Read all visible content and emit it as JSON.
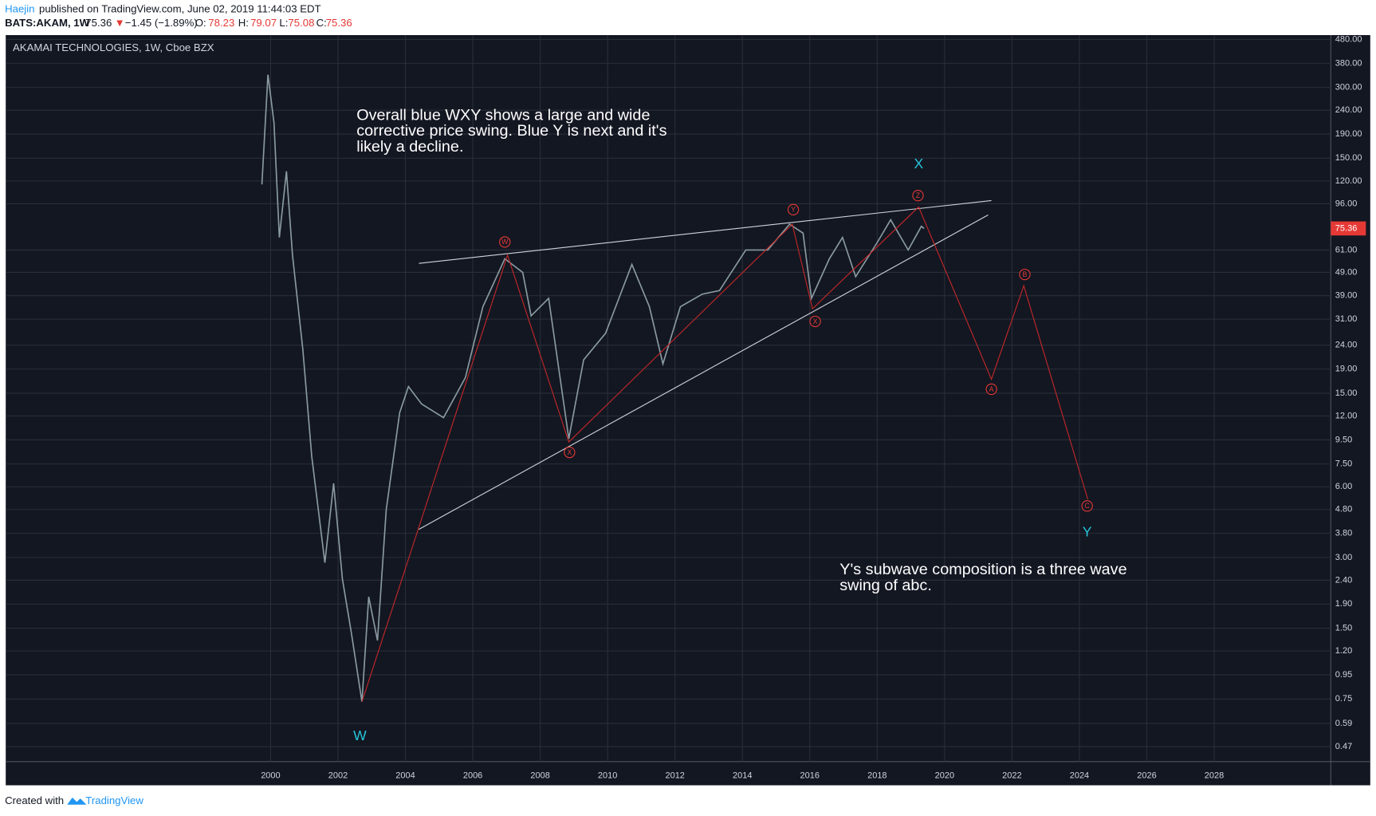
{
  "header": {
    "author": "Haejin",
    "published": "published on TradingView.com, June 02, 2019 11:44:03 EDT",
    "symbol": "BATS:AKAM, 1W",
    "price": "75.36",
    "arrow": "▼",
    "change": "−1.45 (−1.89%)",
    "o_label": "O:",
    "o": "78.23",
    "h_label": "H:",
    "h": "79.07",
    "l_label": "L:",
    "l": "75.08",
    "c_label": "C:",
    "c": "75.36"
  },
  "footer": {
    "created": "Created with",
    "brand": "TradingView"
  },
  "chart_data": {
    "type": "line",
    "title": "AKAMAI TECHNOLOGIES, 1W, Cboe BZX",
    "log_scale": true,
    "grid": true,
    "color": "#8a9ba0",
    "x": [
      1999.74,
      1999.92,
      2000.1,
      2000.26,
      2000.47,
      2000.65,
      2000.96,
      2001.22,
      2001.61,
      2001.87,
      2002.13,
      2002.39,
      2002.71,
      2002.91,
      2003.17,
      2003.43,
      2003.83,
      2004.09,
      2004.48,
      2005.13,
      2005.78,
      2006.3,
      2006.95,
      2007.48,
      2007.73,
      2008.25,
      2008.85,
      2009.29,
      2009.94,
      2010.72,
      2011.24,
      2011.64,
      2012.16,
      2012.81,
      2013.32,
      2014.1,
      2014.75,
      2015.4,
      2015.8,
      2016.05,
      2016.58,
      2016.97,
      2017.36,
      2018.01,
      2018.4,
      2018.92,
      2019.31,
      2019.39
    ],
    "values": [
      116,
      340,
      212,
      69,
      132,
      58,
      22.8,
      8.1,
      2.85,
      6.2,
      2.43,
      1.45,
      0.73,
      2.04,
      1.33,
      4.8,
      12.4,
      16,
      13.5,
      11.8,
      17.5,
      35,
      56,
      49,
      32,
      38,
      9.6,
      20.8,
      27,
      53,
      35,
      20,
      35,
      39.6,
      41,
      61,
      61,
      78.6,
      72,
      38,
      56,
      69,
      47,
      66,
      82,
      61,
      77,
      75.36
    ],
    "last_price": 75.36,
    "last_price_color": "#e53935",
    "xlim": [
      1992.14,
      2031.46
    ],
    "ylim": [
      0.406,
      501
    ],
    "xticks": [
      2000,
      2002,
      2004,
      2006,
      2008,
      2010,
      2012,
      2014,
      2016,
      2018,
      2020,
      2022,
      2024,
      2026,
      2028
    ],
    "yticks": [
      {
        "value": 480,
        "label": "480.00"
      },
      {
        "value": 380,
        "label": "380.00"
      },
      {
        "value": 300,
        "label": "300.00"
      },
      {
        "value": 240,
        "label": "240.00"
      },
      {
        "value": 190,
        "label": "190.00"
      },
      {
        "value": 150,
        "label": "150.00"
      },
      {
        "value": 120,
        "label": "120.00"
      },
      {
        "value": 96,
        "label": "96.00"
      },
      {
        "value": 61,
        "label": "61.00"
      },
      {
        "value": 49,
        "label": "49.00"
      },
      {
        "value": 39,
        "label": "39.00"
      },
      {
        "value": 31,
        "label": "31.00"
      },
      {
        "value": 24,
        "label": "24.00"
      },
      {
        "value": 19,
        "label": "19.00"
      },
      {
        "value": 15,
        "label": "15.00"
      },
      {
        "value": 12,
        "label": "12.00"
      },
      {
        "value": 9.5,
        "label": "9.50"
      },
      {
        "value": 7.5,
        "label": "7.50"
      },
      {
        "value": 6,
        "label": "6.00"
      },
      {
        "value": 4.8,
        "label": "4.80"
      },
      {
        "value": 3.8,
        "label": "3.80"
      },
      {
        "value": 3,
        "label": "3.00"
      },
      {
        "value": 2.4,
        "label": "2.40"
      },
      {
        "value": 1.9,
        "label": "1.90"
      },
      {
        "value": 1.5,
        "label": "1.50"
      },
      {
        "value": 1.2,
        "label": "1.20"
      },
      {
        "value": 0.95,
        "label": "0.95"
      },
      {
        "value": 0.75,
        "label": "0.75"
      },
      {
        "value": 0.59,
        "label": "0.59"
      },
      {
        "value": 0.47,
        "label": "0.47"
      }
    ],
    "wave_path": {
      "color": "#c62828",
      "x": [
        2002.71,
        2007.03,
        2008.85,
        2015.48,
        2016.08,
        2019.23,
        2021.39,
        2022.35,
        2024.25
      ],
      "values": [
        0.73,
        58,
        9.3,
        78.6,
        34.3,
        93,
        17.2,
        43,
        5.3
      ]
    },
    "trend_lines": [
      {
        "color": "#d1d4dc",
        "x": [
          2004.4,
          2021.39
        ],
        "values": [
          53.5,
          99
        ]
      },
      {
        "color": "#d1d4dc",
        "x": [
          2004.4,
          2021.29
        ],
        "values": [
          3.95,
          86
        ]
      }
    ],
    "wave_labels": [
      {
        "text": "W",
        "x": 2006.95,
        "y": 66
      },
      {
        "text": "X",
        "x": 2008.87,
        "y": 8.4
      },
      {
        "text": "Y",
        "x": 2015.51,
        "y": 90.6
      },
      {
        "text": "X",
        "x": 2016.16,
        "y": 30.3
      },
      {
        "text": "Z",
        "x": 2019.21,
        "y": 104
      },
      {
        "text": "A",
        "x": 2021.39,
        "y": 15.6
      },
      {
        "text": "B",
        "x": 2022.38,
        "y": 48
      },
      {
        "text": "C",
        "x": 2024.23,
        "y": 4.97
      }
    ],
    "wave_label_color": "#e53935",
    "major_labels": [
      {
        "text": "W",
        "x": 2002.65,
        "y": 0.52
      },
      {
        "text": "X",
        "x": 2019.23,
        "y": 141
      },
      {
        "text": "Y",
        "x": 2024.23,
        "y": 3.83
      }
    ],
    "major_label_color": "#26c6da",
    "annotations": [
      {
        "lines": [
          "Overall blue WXY shows a large and wide",
          "corrective price swing. Blue Y is next and it's",
          "likely a decline."
        ]
      },
      {
        "lines": [
          "Y's subwave composition is a three wave",
          "swing of abc."
        ]
      }
    ]
  }
}
